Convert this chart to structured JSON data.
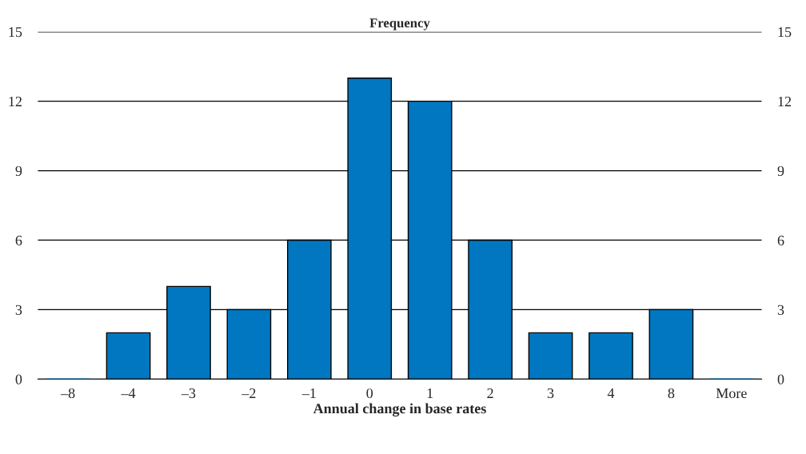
{
  "chart_data": {
    "type": "bar",
    "ylabel": "Frequency",
    "xlabel": "Annual change in base rates",
    "categories": [
      "–8",
      "–4",
      "–3",
      "–2",
      "–1",
      "0",
      "1",
      "2",
      "3",
      "4",
      "8",
      "More"
    ],
    "values": [
      0,
      2,
      4,
      3,
      6,
      13,
      12,
      6,
      2,
      2,
      3,
      0
    ],
    "color": "#0077c0",
    "ylim": [
      0,
      15
    ],
    "yticks": [
      0,
      3,
      6,
      9,
      12,
      15
    ],
    "y2lim": [
      0,
      15
    ],
    "y2ticks": [
      0,
      3,
      6,
      9,
      12,
      15
    ],
    "grid": "y",
    "legend": false
  }
}
